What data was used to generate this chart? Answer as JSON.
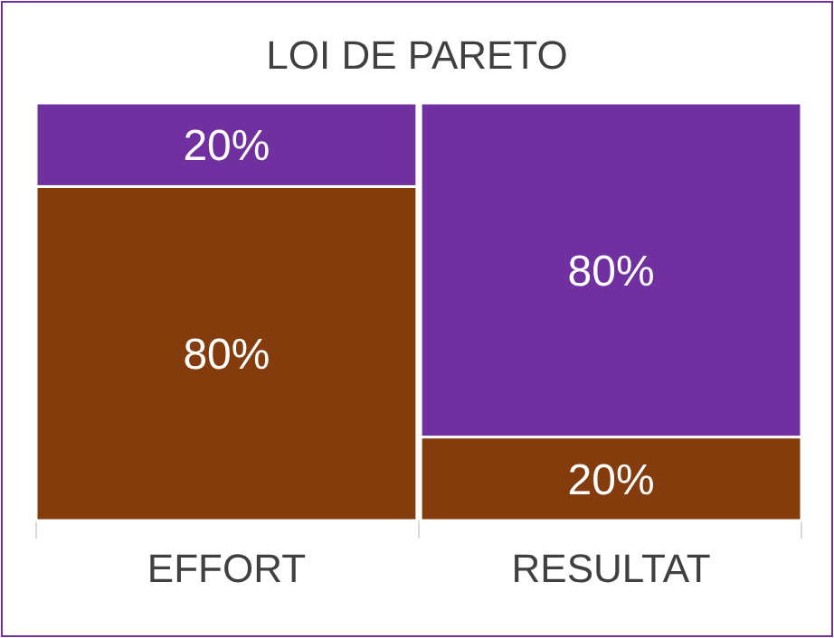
{
  "chart_data": {
    "type": "bar",
    "title": "LOI DE PARETO",
    "categories": [
      "EFFORT",
      "RESULTAT"
    ],
    "stacked": true,
    "ylim": [
      0,
      100
    ],
    "tick_labels": "x",
    "series": [
      {
        "color": "#843c0c",
        "values": [
          80,
          20
        ],
        "value_labels": [
          "80%",
          "20%"
        ]
      },
      {
        "color": "#7030a0",
        "values": [
          20,
          80
        ],
        "value_labels": [
          "20%",
          "80%"
        ]
      }
    ]
  }
}
